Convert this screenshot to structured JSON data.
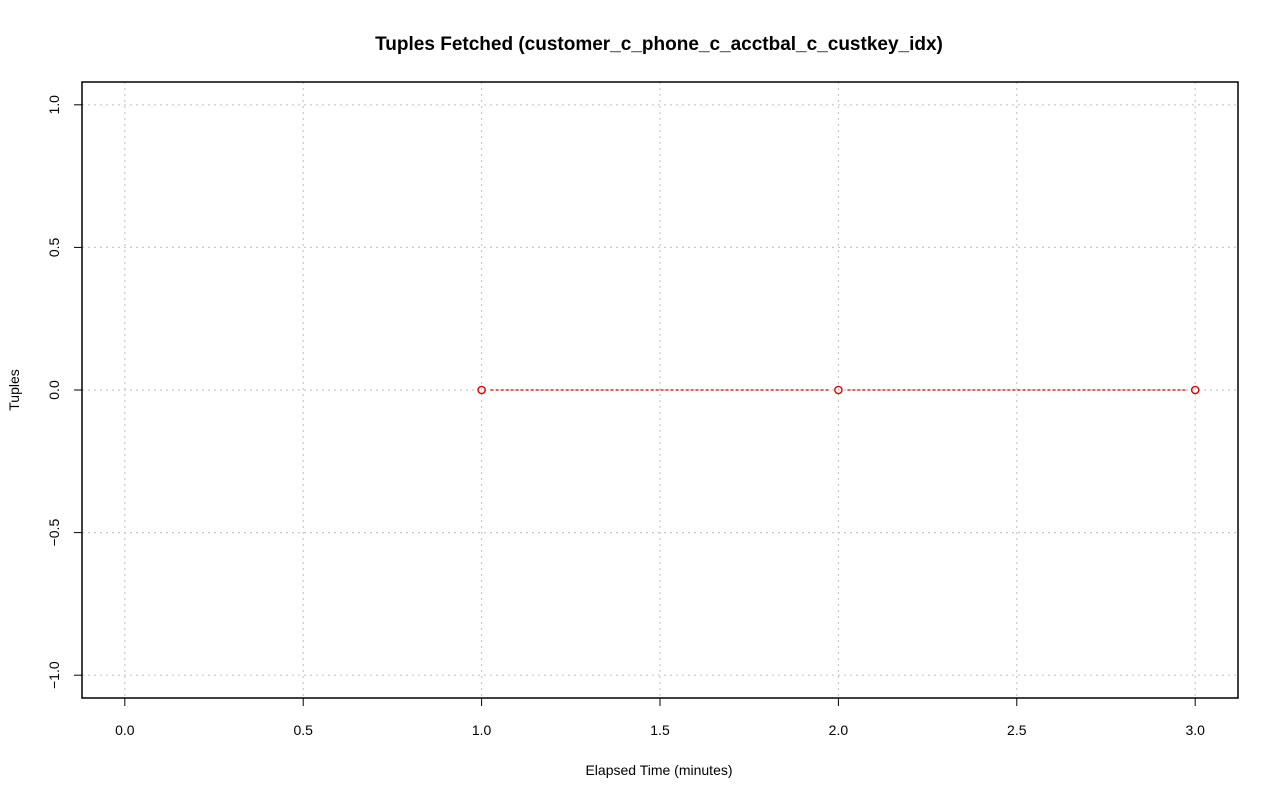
{
  "chart_data": {
    "type": "line",
    "title": "Tuples Fetched (customer_c_phone_c_acctbal_c_custkey_idx)",
    "xlabel": "Elapsed Time (minutes)",
    "ylabel": "Tuples",
    "xlim": [
      -0.12,
      3.12
    ],
    "ylim": [
      -1.08,
      1.08
    ],
    "x_ticks": [
      0.0,
      0.5,
      1.0,
      1.5,
      2.0,
      2.5,
      3.0
    ],
    "x_tick_labels": [
      "0.0",
      "0.5",
      "1.0",
      "1.5",
      "2.0",
      "2.5",
      "3.0"
    ],
    "y_ticks": [
      -1.0,
      -0.5,
      0.0,
      0.5,
      1.0
    ],
    "y_tick_labels": [
      "−1.0",
      "−0.5",
      "0.0",
      "0.5",
      "1.0"
    ],
    "grid": true,
    "series": [
      {
        "x": [
          1,
          2,
          3
        ],
        "y": [
          0,
          0,
          0
        ],
        "color": "#e00000",
        "line_style": "dashed",
        "marker": "open-circle"
      }
    ]
  }
}
